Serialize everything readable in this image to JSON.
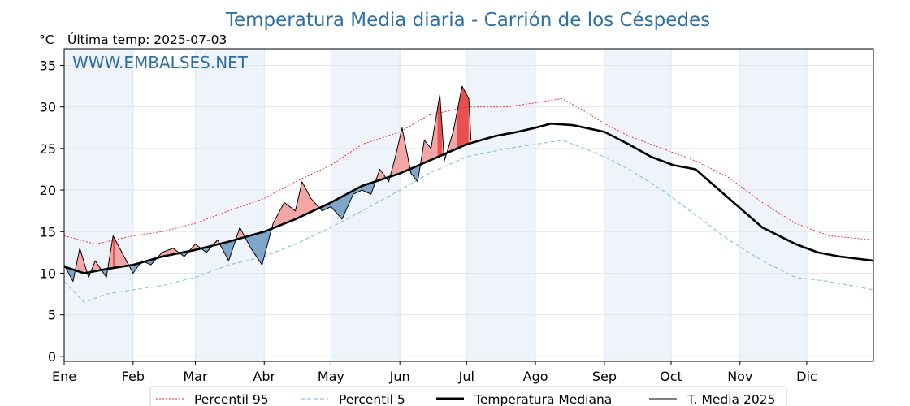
{
  "chart_data": {
    "type": "line",
    "title": "Temperatura Media diaria - Carrión de los Céspedes",
    "unit_label": "°C",
    "last_temp_label": "Última temp: 2025-07-03",
    "watermark": "WWW.EMBALSES.NET",
    "ylim": [
      -0.6,
      37
    ],
    "yticks": [
      0,
      5,
      10,
      15,
      20,
      25,
      30,
      35
    ],
    "xlim_days": [
      1,
      365
    ],
    "grid": true,
    "legend_position": "bottom",
    "months": [
      {
        "label": "Ene",
        "start_day": 1
      },
      {
        "label": "Feb",
        "start_day": 32
      },
      {
        "label": "Mar",
        "start_day": 60
      },
      {
        "label": "Abr",
        "start_day": 91
      },
      {
        "label": "May",
        "start_day": 121
      },
      {
        "label": "Jun",
        "start_day": 152
      },
      {
        "label": "Jul",
        "start_day": 182
      },
      {
        "label": "Ago",
        "start_day": 213
      },
      {
        "label": "Sep",
        "start_day": 244
      },
      {
        "label": "Oct",
        "start_day": 274
      },
      {
        "label": "Nov",
        "start_day": 305
      },
      {
        "label": "Dic",
        "start_day": 335
      }
    ],
    "colors": {
      "p95": "#e8202a",
      "p5": "#8ec7de",
      "median": "#000000",
      "t2025": "#000000",
      "above_fill": "#f4a6a6",
      "above_strong": "#e8504f",
      "below_fill": "#7fa6c9",
      "title": "#2e6fa3",
      "band": "#eef4fa"
    },
    "series": [
      {
        "name": "Percentil 95",
        "key": "p95",
        "x": [
          1,
          15,
          32,
          45,
          60,
          75,
          91,
          105,
          121,
          135,
          152,
          165,
          182,
          200,
          213,
          225,
          235,
          244,
          255,
          270,
          285,
          300,
          315,
          330,
          345,
          365
        ],
        "y": [
          14.5,
          13.5,
          14.5,
          15.0,
          16.0,
          17.5,
          19.0,
          21.0,
          23.0,
          25.5,
          27.0,
          29.0,
          30.0,
          30.0,
          30.5,
          31.0,
          29.5,
          28.0,
          26.5,
          25.0,
          23.5,
          21.5,
          18.5,
          16.0,
          14.5,
          14.0
        ]
      },
      {
        "name": "Percentil 5",
        "key": "p5",
        "x": [
          1,
          10,
          20,
          32,
          45,
          60,
          75,
          91,
          105,
          121,
          135,
          152,
          165,
          182,
          200,
          213,
          225,
          235,
          244,
          255,
          270,
          285,
          300,
          315,
          330,
          345,
          365
        ],
        "y": [
          9.0,
          6.5,
          7.5,
          8.0,
          8.5,
          9.5,
          11.0,
          12.0,
          13.5,
          15.5,
          17.5,
          20.0,
          22.0,
          24.0,
          25.0,
          25.5,
          26.0,
          25.0,
          24.0,
          22.5,
          20.0,
          17.0,
          14.0,
          11.5,
          9.5,
          9.0,
          8.0
        ]
      },
      {
        "name": "Temperatura Mediana",
        "key": "median",
        "x": [
          1,
          10,
          20,
          32,
          45,
          60,
          75,
          91,
          105,
          121,
          135,
          152,
          165,
          182,
          195,
          205,
          213,
          220,
          230,
          244,
          255,
          265,
          275,
          285,
          300,
          315,
          330,
          340,
          350,
          365
        ],
        "y": [
          10.8,
          10.0,
          10.5,
          11.0,
          12.0,
          12.8,
          13.8,
          15.0,
          16.5,
          18.5,
          20.5,
          22.0,
          23.5,
          25.5,
          26.5,
          27.0,
          27.5,
          28.0,
          27.8,
          27.0,
          25.5,
          24.0,
          23.0,
          22.5,
          19.0,
          15.5,
          13.5,
          12.5,
          12.0,
          11.5
        ]
      },
      {
        "name": "T. Media 2025",
        "key": "t2025",
        "x": [
          1,
          5,
          8,
          12,
          15,
          20,
          23,
          28,
          32,
          36,
          40,
          45,
          50,
          55,
          60,
          65,
          70,
          75,
          80,
          85,
          90,
          95,
          100,
          105,
          108,
          112,
          117,
          121,
          126,
          131,
          135,
          139,
          143,
          147,
          150,
          153,
          157,
          160,
          163,
          166,
          170,
          172,
          176,
          180,
          183,
          184
        ],
        "y": [
          11.0,
          9.0,
          13.0,
          9.5,
          11.5,
          9.5,
          14.5,
          12.0,
          10.0,
          11.5,
          11.0,
          12.5,
          13.0,
          12.0,
          13.5,
          12.5,
          14.0,
          11.5,
          15.5,
          13.0,
          11.0,
          16.0,
          18.5,
          17.5,
          21.0,
          19.0,
          17.5,
          18.0,
          16.5,
          19.5,
          20.0,
          19.5,
          22.5,
          21.0,
          24.0,
          27.5,
          22.0,
          21.0,
          26.0,
          25.0,
          31.5,
          23.5,
          27.0,
          32.5,
          31.0,
          26.0
        ]
      }
    ]
  }
}
